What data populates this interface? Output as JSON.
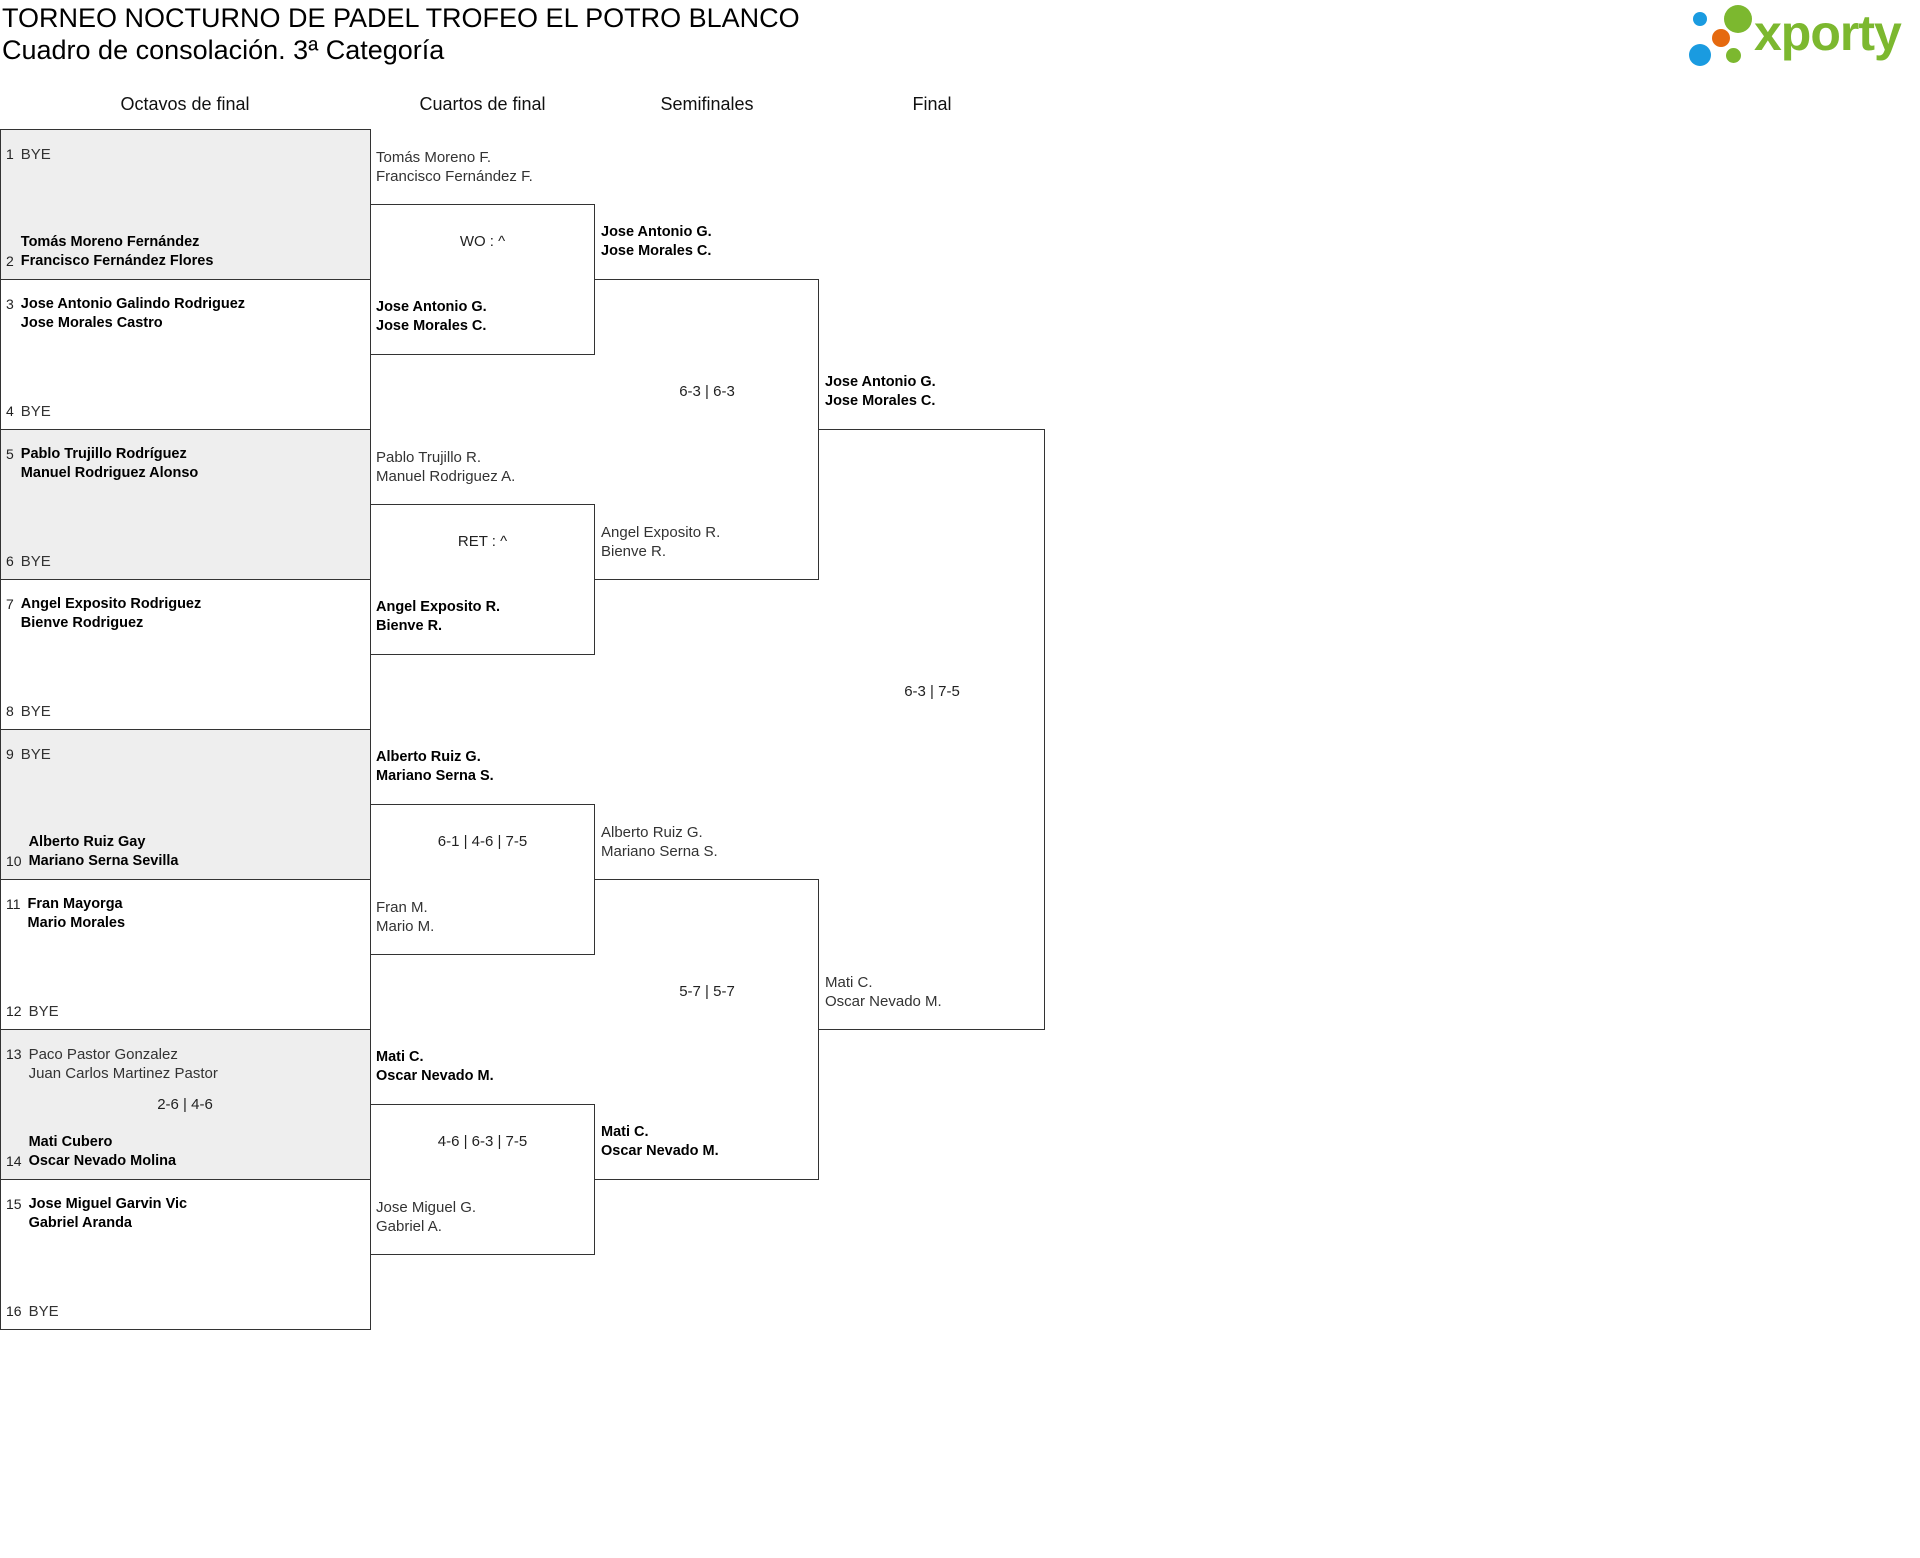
{
  "header": {
    "title": "TORNEO NOCTURNO DE PADEL TROFEO EL POTRO BLANCO",
    "subtitle": "Cuadro de consolación. 3ª Categoría"
  },
  "logo": {
    "text": "xporty",
    "colors": {
      "green": "#7cb82f",
      "blue": "#1a9be0",
      "orange": "#e5690f"
    }
  },
  "rounds": [
    {
      "label": "Octavos de final",
      "matches": [
        {
          "top": {
            "seed": "1",
            "names": [
              "BYE"
            ],
            "winner": false
          },
          "bottom": {
            "seed": "2",
            "names": [
              "Tomás Moreno Fernández",
              "Francisco Fernández Flores"
            ],
            "winner": true
          },
          "score": ""
        },
        {
          "top": {
            "seed": "3",
            "names": [
              "Jose Antonio Galindo Rodriguez",
              "Jose Morales Castro"
            ],
            "winner": true
          },
          "bottom": {
            "seed": "4",
            "names": [
              "BYE"
            ],
            "winner": false
          },
          "score": ""
        },
        {
          "top": {
            "seed": "5",
            "names": [
              "Pablo Trujillo Rodríguez",
              "Manuel Rodriguez Alonso"
            ],
            "winner": true
          },
          "bottom": {
            "seed": "6",
            "names": [
              "BYE"
            ],
            "winner": false
          },
          "score": ""
        },
        {
          "top": {
            "seed": "7",
            "names": [
              "Angel Exposito Rodriguez",
              "Bienve Rodriguez"
            ],
            "winner": true
          },
          "bottom": {
            "seed": "8",
            "names": [
              "BYE"
            ],
            "winner": false
          },
          "score": ""
        },
        {
          "top": {
            "seed": "9",
            "names": [
              "BYE"
            ],
            "winner": false
          },
          "bottom": {
            "seed": "10",
            "names": [
              "Alberto Ruiz Gay",
              "Mariano Serna Sevilla"
            ],
            "winner": true
          },
          "score": ""
        },
        {
          "top": {
            "seed": "11",
            "names": [
              "Fran Mayorga",
              "Mario Morales"
            ],
            "winner": true
          },
          "bottom": {
            "seed": "12",
            "names": [
              "BYE"
            ],
            "winner": false
          },
          "score": ""
        },
        {
          "top": {
            "seed": "13",
            "names": [
              "Paco Pastor Gonzalez",
              "Juan Carlos Martinez Pastor"
            ],
            "winner": false
          },
          "bottom": {
            "seed": "14",
            "names": [
              "Mati Cubero",
              "Oscar Nevado Molina"
            ],
            "winner": true
          },
          "score": "2-6 | 4-6"
        },
        {
          "top": {
            "seed": "15",
            "names": [
              "Jose Miguel Garvin Vic",
              "Gabriel Aranda"
            ],
            "winner": true
          },
          "bottom": {
            "seed": "16",
            "names": [
              "BYE"
            ],
            "winner": false
          },
          "score": ""
        }
      ]
    },
    {
      "label": "Cuartos de final",
      "matches": [
        {
          "top": {
            "names": [
              "Tomás Moreno F.",
              "Francisco Fernández F."
            ],
            "winner": false
          },
          "bottom": {
            "names": [
              "Jose Antonio G.",
              "Jose Morales C."
            ],
            "winner": true
          },
          "score": "WO : ^"
        },
        {
          "top": {
            "names": [
              "Pablo Trujillo R.",
              "Manuel Rodriguez A."
            ],
            "winner": false
          },
          "bottom": {
            "names": [
              "Angel Exposito R.",
              "Bienve R."
            ],
            "winner": true
          },
          "score": "RET : ^"
        },
        {
          "top": {
            "names": [
              "Alberto Ruiz G.",
              "Mariano Serna S."
            ],
            "winner": true
          },
          "bottom": {
            "names": [
              "Fran M.",
              "Mario M."
            ],
            "winner": false
          },
          "score": "6-1 | 4-6 | 7-5"
        },
        {
          "top": {
            "names": [
              "Mati C.",
              "Oscar Nevado M."
            ],
            "winner": true
          },
          "bottom": {
            "names": [
              "Jose Miguel G.",
              "Gabriel A."
            ],
            "winner": false
          },
          "score": "4-6 | 6-3 | 7-5"
        }
      ]
    },
    {
      "label": "Semifinales",
      "matches": [
        {
          "top": {
            "names": [
              "Jose Antonio G.",
              "Jose Morales C."
            ],
            "winner": true
          },
          "bottom": {
            "names": [
              "Angel Exposito R.",
              "Bienve R."
            ],
            "winner": false
          },
          "score": "6-3 | 6-3"
        },
        {
          "top": {
            "names": [
              "Alberto Ruiz G.",
              "Mariano Serna S."
            ],
            "winner": false
          },
          "bottom": {
            "names": [
              "Mati C.",
              "Oscar Nevado M."
            ],
            "winner": true
          },
          "score": "5-7 | 5-7"
        }
      ]
    },
    {
      "label": "Final",
      "matches": [
        {
          "top": {
            "names": [
              "Jose Antonio G.",
              "Jose Morales C."
            ],
            "winner": true
          },
          "bottom": {
            "names": [
              "Mati C.",
              "Oscar Nevado M."
            ],
            "winner": false
          },
          "score": "6-3 | 7-5"
        }
      ]
    }
  ]
}
